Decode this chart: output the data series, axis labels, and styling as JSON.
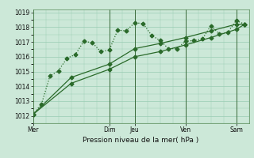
{
  "background_color": "#cce8d8",
  "grid_color": "#99ccb3",
  "line_color": "#2a6a2a",
  "xlabel": "Pression niveau de la mer( hPa )",
  "ylim": [
    1011.5,
    1019.2
  ],
  "yticks": [
    1012,
    1013,
    1014,
    1015,
    1016,
    1017,
    1018,
    1019
  ],
  "day_labels": [
    "Mer",
    "Dim",
    "Jeu",
    "Ven",
    "Sam"
  ],
  "day_positions": [
    0,
    9,
    12,
    18,
    24
  ],
  "xlim": [
    0,
    25.5
  ],
  "series1_x": [
    0,
    1,
    2,
    3,
    4,
    5,
    6,
    7,
    8,
    9,
    10,
    11,
    12,
    13,
    14,
    15,
    16,
    17,
    18,
    19,
    20,
    21,
    22,
    23,
    24,
    25
  ],
  "series1_y": [
    1012.1,
    1012.8,
    1014.7,
    1015.05,
    1015.9,
    1016.15,
    1017.05,
    1016.95,
    1016.35,
    1016.45,
    1017.8,
    1017.75,
    1018.3,
    1018.25,
    1017.45,
    1017.1,
    1016.55,
    1016.55,
    1017.05,
    1017.1,
    1017.2,
    1018.1,
    1017.55,
    1017.65,
    1018.45,
    1018.2
  ],
  "series2_x": [
    0,
    4.5,
    9,
    12,
    15,
    18,
    21,
    24,
    25
  ],
  "series2_y": [
    1012.1,
    1014.2,
    1015.15,
    1016.0,
    1016.35,
    1016.8,
    1017.3,
    1017.85,
    1018.2
  ],
  "series3_x": [
    0,
    4.5,
    9,
    12,
    15,
    18,
    21,
    24,
    25
  ],
  "series3_y": [
    1012.1,
    1014.6,
    1015.5,
    1016.55,
    1016.9,
    1017.3,
    1017.75,
    1018.2,
    1018.2
  ],
  "marker_size": 2.5,
  "linewidth": 0.9,
  "tick_fontsize": 5.5,
  "xlabel_fontsize": 6.5
}
